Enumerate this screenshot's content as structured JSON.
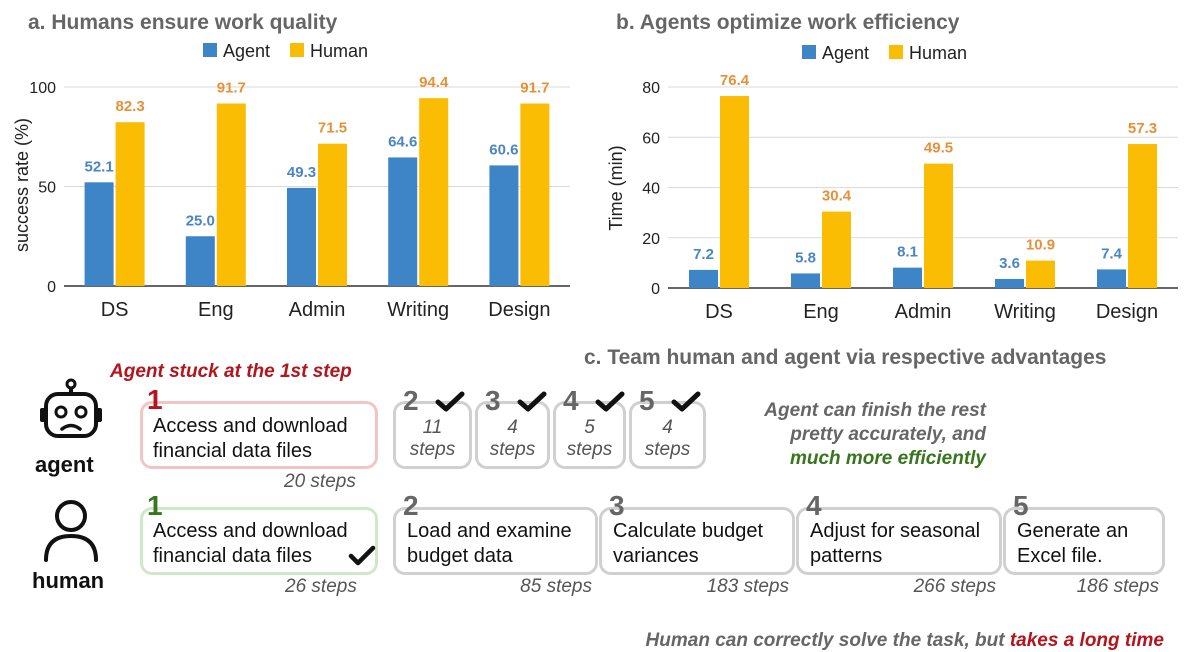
{
  "chart_data": [
    {
      "type": "bar",
      "panel_title": "a.  Humans ensure work quality",
      "categories": [
        "DS",
        "Eng",
        "Admin",
        "Writing",
        "Design"
      ],
      "series": [
        {
          "name": "Agent",
          "color": "#3d85c6",
          "values": [
            52.1,
            25.0,
            49.3,
            64.6,
            60.6
          ],
          "labels": [
            "52.1",
            "25.0",
            "49.3",
            "64.6",
            "60.6"
          ]
        },
        {
          "name": "Human",
          "color": "#fbbc04",
          "values": [
            82.3,
            91.7,
            71.5,
            94.4,
            91.7
          ],
          "labels": [
            "82.3",
            "91.7",
            "71.5",
            "94.4",
            "91.7"
          ]
        }
      ],
      "ylabel": "success rate (%)",
      "ylim": [
        0,
        100
      ],
      "yticks": [
        0,
        50,
        100
      ],
      "legend": "top-center"
    },
    {
      "type": "bar",
      "panel_title": "b.  Agents optimize work efficiency",
      "categories": [
        "DS",
        "Eng",
        "Admin",
        "Writing",
        "Design"
      ],
      "series": [
        {
          "name": "Agent",
          "color": "#3d85c6",
          "values": [
            7.2,
            5.8,
            8.1,
            3.6,
            7.4
          ],
          "labels": [
            "7.2",
            "5.8",
            "8.1",
            "3.6",
            "7.4"
          ]
        },
        {
          "name": "Human",
          "color": "#fbbc04",
          "values": [
            76.4,
            30.4,
            49.5,
            10.9,
            57.3
          ],
          "labels": [
            "76.4",
            "30.4",
            "49.5",
            "10.9",
            "57.3"
          ]
        }
      ],
      "ylabel": "Time (min)",
      "ylim": [
        0,
        80
      ],
      "yticks": [
        0,
        20,
        40,
        60,
        80
      ],
      "legend": "top-center"
    }
  ],
  "colors": {
    "agent_bar": "#3d85c6",
    "human_bar": "#fbbc04",
    "agent_label": "#4a86c5",
    "human_label": "#e69138",
    "stuck_red": "#b4141c",
    "success_green": "#38761d"
  },
  "panel_c": {
    "title": "c.  Team human and agent via respective advantages",
    "stuck_note": "Agent stuck at the 1st step",
    "agent_label": "agent",
    "human_label": "human",
    "agent_first": {
      "num": "1",
      "text1": "Access and download",
      "text2": "financial data files",
      "steps": "20 steps"
    },
    "agent_rest": [
      {
        "num": "2",
        "steps1": "11",
        "steps2": "steps"
      },
      {
        "num": "3",
        "steps1": "4",
        "steps2": "steps"
      },
      {
        "num": "4",
        "steps1": "5",
        "steps2": "steps"
      },
      {
        "num": "5",
        "steps1": "4",
        "steps2": "steps"
      }
    ],
    "agent_note1": "Agent can finish the rest",
    "agent_note2": "pretty accurately, and",
    "agent_note3": "much more efficiently",
    "human_first": {
      "num": "1",
      "text1": "Access and download",
      "text2": "financial data files",
      "steps": "26 steps"
    },
    "human_rest": [
      {
        "num": "2",
        "text1": "Load and examine",
        "text2": "budget data",
        "steps": "85 steps"
      },
      {
        "num": "3",
        "text1": "Calculate budget",
        "text2": "variances",
        "steps": "183 steps"
      },
      {
        "num": "4",
        "text1": "Adjust for seasonal",
        "text2": "patterns",
        "steps": "266 steps"
      },
      {
        "num": "5",
        "text1": "Generate an",
        "text2": "Excel file.",
        "steps": "186 steps"
      }
    ],
    "human_note_a": "Human can correctly solve the task, but ",
    "human_note_b": "takes a long time"
  }
}
